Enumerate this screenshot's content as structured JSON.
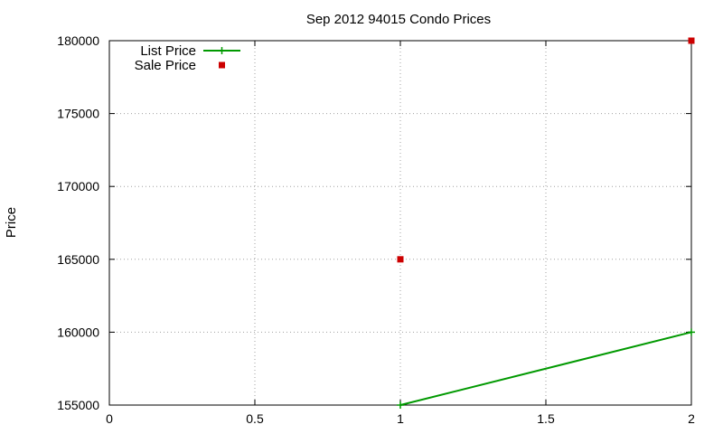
{
  "chart_data": {
    "type": "line",
    "title": "Sep 2012 94015 Condo Prices",
    "xlabel": "",
    "ylabel": "Price",
    "xlim": [
      0,
      2
    ],
    "ylim": [
      155000,
      180000
    ],
    "xticks": [
      0,
      0.5,
      1,
      1.5,
      2
    ],
    "xtick_labels": [
      "0",
      "0.5",
      "1",
      "1.5",
      "2"
    ],
    "yticks": [
      155000,
      160000,
      165000,
      170000,
      175000,
      180000
    ],
    "ytick_labels": [
      "155000",
      "160000",
      "165000",
      "170000",
      "175000",
      "180000"
    ],
    "grid": true,
    "legend_position": "top-left",
    "series": [
      {
        "name": "List Price",
        "style": "linespoints",
        "marker": "plus",
        "color": "#009900",
        "points": [
          {
            "x": 1,
            "y": 155000
          },
          {
            "x": 2,
            "y": 160000
          }
        ]
      },
      {
        "name": "Sale Price",
        "style": "points",
        "marker": "square",
        "color": "#cc0000",
        "points": [
          {
            "x": 1,
            "y": 165000
          },
          {
            "x": 2,
            "y": 180000
          }
        ]
      }
    ]
  }
}
